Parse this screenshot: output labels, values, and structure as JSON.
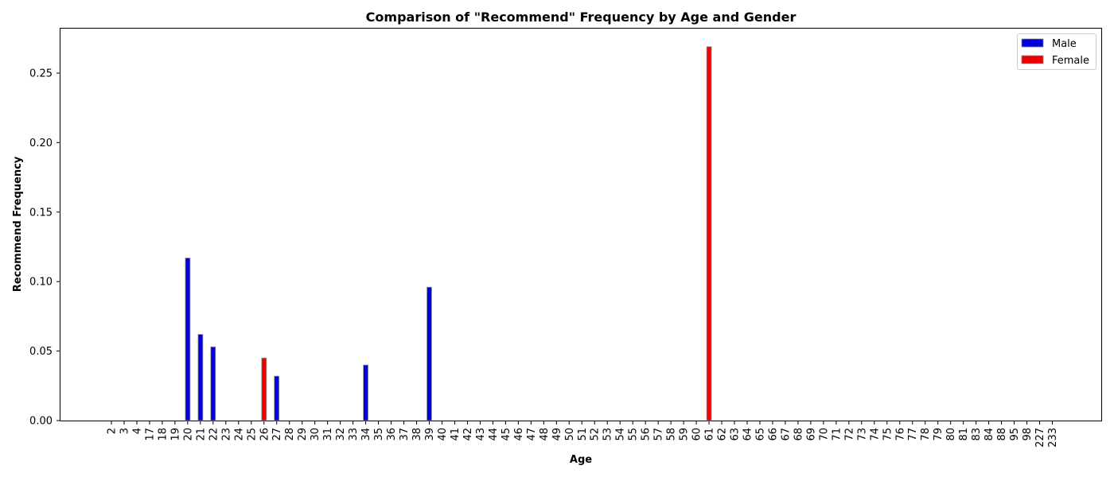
{
  "chart_data": {
    "type": "bar",
    "title": "Comparison of \"Recommend\" Frequency by Age and Gender",
    "xlabel": "Age",
    "ylabel": "Recommend Frequency",
    "categories": [
      "2",
      "3",
      "4",
      "17",
      "18",
      "19",
      "20",
      "21",
      "22",
      "23",
      "24",
      "25",
      "26",
      "27",
      "28",
      "29",
      "30",
      "31",
      "32",
      "33",
      "34",
      "35",
      "36",
      "37",
      "38",
      "39",
      "40",
      "41",
      "42",
      "43",
      "44",
      "45",
      "46",
      "47",
      "48",
      "49",
      "50",
      "51",
      "52",
      "53",
      "54",
      "55",
      "56",
      "57",
      "58",
      "59",
      "60",
      "61",
      "62",
      "63",
      "64",
      "65",
      "66",
      "67",
      "68",
      "69",
      "70",
      "71",
      "72",
      "73",
      "74",
      "75",
      "76",
      "77",
      "78",
      "79",
      "80",
      "81",
      "83",
      "84",
      "88",
      "95",
      "98",
      "227",
      "233"
    ],
    "ylim": [
      0,
      0.282
    ],
    "yticks": [
      "0.00",
      "0.05",
      "0.10",
      "0.15",
      "0.20",
      "0.25"
    ],
    "ytick_values": [
      0,
      0.05,
      0.1,
      0.15,
      0.2,
      0.25
    ],
    "grid": false,
    "legend_position": "top-right",
    "series": [
      {
        "name": "Male",
        "color": "#0000dd",
        "values": [
          0,
          0,
          0,
          0,
          0,
          0,
          0.117,
          0.062,
          0.053,
          0,
          0,
          0,
          0,
          0.032,
          0,
          0,
          0,
          0,
          0,
          0,
          0.04,
          0,
          0,
          0,
          0,
          0.096,
          0,
          0,
          0,
          0,
          0,
          0,
          0,
          0,
          0,
          0,
          0,
          0,
          0,
          0,
          0,
          0,
          0,
          0,
          0,
          0,
          0,
          0,
          0,
          0,
          0,
          0,
          0,
          0,
          0,
          0,
          0,
          0,
          0,
          0,
          0,
          0,
          0,
          0,
          0,
          0,
          0,
          0,
          0,
          0,
          0,
          0,
          0,
          0,
          0
        ]
      },
      {
        "name": "Female",
        "color": "#ee0000",
        "values": [
          0,
          0,
          0,
          0,
          0,
          0,
          0,
          0,
          0,
          0,
          0,
          0,
          0.045,
          0,
          0,
          0,
          0,
          0,
          0,
          0,
          0,
          0,
          0,
          0,
          0,
          0,
          0,
          0,
          0,
          0,
          0,
          0,
          0,
          0,
          0,
          0,
          0,
          0,
          0,
          0,
          0,
          0,
          0,
          0,
          0,
          0,
          0,
          0.269,
          0,
          0,
          0,
          0,
          0,
          0,
          0,
          0,
          0,
          0,
          0,
          0,
          0,
          0,
          0,
          0,
          0,
          0,
          0,
          0,
          0,
          0,
          0,
          0,
          0,
          0,
          0
        ]
      }
    ]
  }
}
